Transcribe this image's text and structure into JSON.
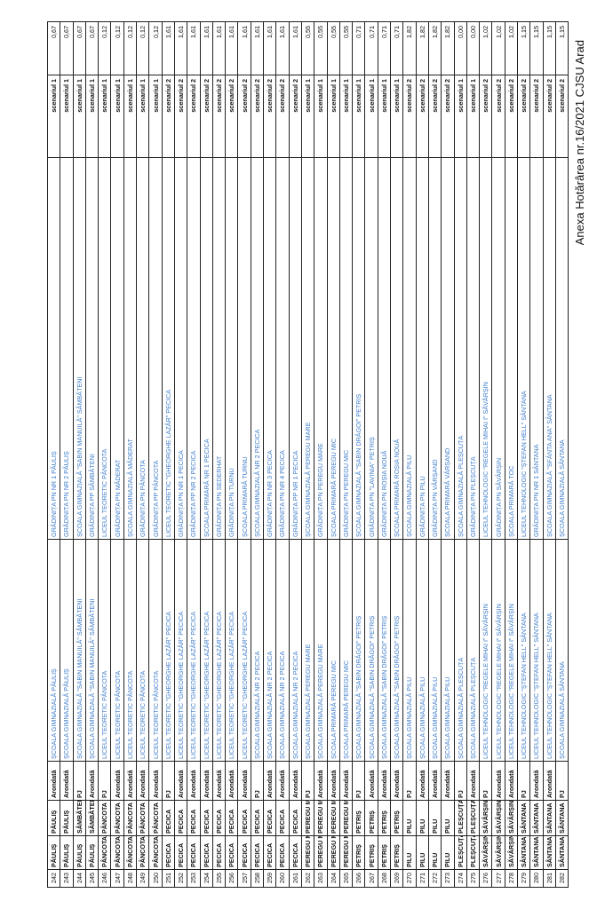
{
  "document": {
    "annex_title": "Anexa Hotărârea nr.16/2021 CJSU Arad"
  },
  "rows": [
    [
      "242",
      "PĂULIȘ",
      "PĂULIȘ",
      "Arondată",
      "ȘCOALA GIMNAZIALĂ PĂULIȘ",
      "GRĂDINIȚA PN NR 1 PĂULIȘ",
      "scenariul 1",
      "0,67"
    ],
    [
      "243",
      "PĂULIȘ",
      "PĂULIȘ",
      "Arondată",
      "ȘCOALA GIMNAZIALĂ PĂULIȘ",
      "GRĂDINIȚA PN NR 2 PĂULIȘ",
      "scenariul 1",
      "0,67"
    ],
    [
      "244",
      "PĂULIȘ",
      "SÂMBĂTENI",
      "PJ",
      "ȘCOALA GIMNAZIALĂ \"SABIN MANUILĂ\" SÂMBĂTENI",
      "ȘCOALA GIMNAZIALĂ \"SABIN MANUILĂ\" SÂMBĂTENI",
      "scenariul 1",
      "0,67"
    ],
    [
      "245",
      "PĂULIȘ",
      "SÂMBĂTENI",
      "Arondată",
      "ȘCOALA GIMNAZIALĂ \"SABIN MANUILĂ\" SÂMBĂTENI",
      "GRĂDINIȚA PP SÂMBĂTENI",
      "scenariul 1",
      "0,67"
    ],
    [
      "246",
      "PÂNCOTA",
      "PÂNCOTA",
      "PJ",
      "LICEUL TEORETIC PÂNCOTA",
      "LICEUL TEORETIC PÂNCOTA",
      "scenariul 1",
      "0,12"
    ],
    [
      "247",
      "PÂNCOTA",
      "PÂNCOTA",
      "Arondată",
      "LICEUL TEORETIC PÂNCOTA",
      "GRĂDINIȚA PN MĂDERAT",
      "scenariul 1",
      "0,12"
    ],
    [
      "248",
      "PÂNCOTA",
      "PÂNCOTA",
      "Arondată",
      "LICEUL TEORETIC PÂNCOTA",
      "ȘCOALA GIMNAZIALĂ MĂDERAT",
      "scenariul 1",
      "0,12"
    ],
    [
      "249",
      "PÂNCOTA",
      "PÂNCOTA",
      "Arondată",
      "LICEUL TEORETIC PÂNCOTA",
      "GRĂDINIȚA PN PÂNCOTA",
      "scenariul 1",
      "0,12"
    ],
    [
      "250",
      "PÂNCOTA",
      "PÂNCOTA",
      "Arondată",
      "LICEUL TEORETIC PÂNCOTA",
      "GRĂDINIȚA PP PÂNCOTA",
      "scenariul 1",
      "0,12"
    ],
    [
      "251",
      "PECICA",
      "PECICA",
      "PJ",
      "LICEUL TEORETIC \"GHEORGHE LAZĂR\" PECICA",
      "LICEUL TEORETIC \"GHEORGHE LAZĂR\" PECICA",
      "scenariul 2",
      "1,61"
    ],
    [
      "252",
      "PECICA",
      "PECICA",
      "Arondată",
      "LICEUL TEORETIC \"GHEORGHE LAZĂR\" PECICA",
      "GRĂDINIȚA PN NR 1 PECICA",
      "scenariul 2",
      "1,61"
    ],
    [
      "253",
      "PECICA",
      "PECICA",
      "Arondată",
      "LICEUL TEORETIC \"GHEORGHE LAZĂR\" PECICA",
      "GRĂDINIȚA PP NR 2 PECICA",
      "scenariul 2",
      "1,61"
    ],
    [
      "254",
      "PECICA",
      "PECICA",
      "Arondată",
      "LICEUL TEORETIC \"GHEORGHE LAZĂR\" PECICA",
      "ȘCOALA PRIMARĂ NR 1 PECICA",
      "scenariul 2",
      "1,61"
    ],
    [
      "255",
      "PECICA",
      "PECICA",
      "Arondată",
      "LICEUL TEORETIC \"GHEORGHE LAZĂR\" PECICA",
      "GRĂDINIȚA PN SEDERHAT",
      "scenariul 2",
      "1,61"
    ],
    [
      "256",
      "PECICA",
      "PECICA",
      "Arondată",
      "LICEUL TEORETIC \"GHEORGHE LAZĂR\" PECICA",
      "GRĂDINIȚA PN TURNU",
      "scenariul 2",
      "1,61"
    ],
    [
      "257",
      "PECICA",
      "PECICA",
      "Arondată",
      "LICEUL TEORETIC \"GHEORGHE LAZĂR\" PECICA",
      "ȘCOALA PRIMARĂ TURNU",
      "scenariul 2",
      "1,61"
    ],
    [
      "258",
      "PECICA",
      "PECICA",
      "PJ",
      "ȘCOALA GIMNAZIALĂ NR 2 PECICA",
      "ȘCOALA GIMNAZIALĂ NR 2 PECICA",
      "scenariul 2",
      "1,61"
    ],
    [
      "259",
      "PECICA",
      "PECICA",
      "Arondată",
      "ȘCOALA GIMNAZIALĂ NR 2 PECICA",
      "GRĂDINIȚA PN NR 3 PECICA",
      "scenariul 2",
      "1,61"
    ],
    [
      "260",
      "PECICA",
      "PECICA",
      "Arondată",
      "ȘCOALA GIMNAZIALĂ NR 2 PECICA",
      "GRĂDINIȚA PN NR 4 PECICA",
      "scenariul 2",
      "1,61"
    ],
    [
      "261",
      "PECICA",
      "PECICA",
      "Arondată",
      "ȘCOALA GIMNAZIALĂ NR 2 PECICA",
      "GRĂDINIȚA PP NR 1 PECICA",
      "scenariul 2",
      "1,61"
    ],
    [
      "262",
      "PEREGU MARE",
      "PEREGU MARE",
      "PJ",
      "ȘCOALA GIMNAZIALĂ PEREGU MARE",
      "ȘCOALA GIMNAZIALĂ PEREGU MARE",
      "scenariul 1",
      "0,55"
    ],
    [
      "263",
      "PEREGU MARE",
      "PEREGU MARE",
      "Arondată",
      "ȘCOALA GIMNAZIALĂ PEREGU MARE",
      "GRĂDINIȚA PN PEREGU MARE",
      "scenariul 1",
      "0,55"
    ],
    [
      "264",
      "PEREGU MARE",
      "PEREGU MIC",
      "Arondată",
      "ȘCOALA PRIMARĂ PEREGU MIC",
      "ȘCOALA PRIMARĂ PEREGU MIC",
      "scenariul 1",
      "0,55"
    ],
    [
      "265",
      "PEREGU MARE",
      "PEREGU MIC",
      "Arondată",
      "ȘCOALA PRIMARĂ PEREGU MIC",
      "GRĂDINIȚA PN PEREGU MIC",
      "scenariul 1",
      "0,55"
    ],
    [
      "266",
      "PETRIȘ",
      "PETRIȘ",
      "PJ",
      "ȘCOALA GIMNAZIALĂ \"SABIN DRĂGOI\" PETRIȘ",
      "ȘCOALA GIMNAZIALĂ \"SABIN DRĂGOI\" PETRIȘ",
      "scenariul 1",
      "0,71"
    ],
    [
      "267",
      "PETRIȘ",
      "PETRIȘ",
      "Arondată",
      "ȘCOALA GIMNAZIALĂ \"SABIN DRĂGOI\" PETRIȘ",
      "GRĂDINIȚA PN \"LAVINIA\" PETRIȘ",
      "scenariul 1",
      "0,71"
    ],
    [
      "268",
      "PETRIȘ",
      "PETRIȘ",
      "Arondată",
      "ȘCOALA GIMNAZIALĂ \"SABIN DRĂGOI\" PETRIȘ",
      "GRĂDINIȚA PN ROȘIA NOUĂ",
      "scenariul 1",
      "0,71"
    ],
    [
      "269",
      "PETRIȘ",
      "PETRIȘ",
      "Arondată",
      "ȘCOALA GIMNAZIALĂ \"SABIN DRĂGOI\" PETRIȘ",
      "ȘCOALA PRIMARĂ ROȘIA NOUĂ",
      "scenariul 1",
      "0,71"
    ],
    [
      "270",
      "PILU",
      "PILU",
      "PJ",
      "ȘCOALA GIMNAZIALĂ PILU",
      "ȘCOALA GIMNAZIALĂ PILU",
      "scenariul 2",
      "1,82"
    ],
    [
      "271",
      "PILU",
      "PILU",
      "Arondată",
      "ȘCOALA GIMNAZIALĂ PILU",
      "GRĂDINIȚA PN PILU",
      "scenariul 2",
      "1,82"
    ],
    [
      "272",
      "PILU",
      "PILU",
      "Arondată",
      "ȘCOALA GIMNAZIALĂ PILU",
      "GRĂDINIȚA PN VĂRȘAND",
      "scenariul 2",
      "1,82"
    ],
    [
      "273",
      "PILU",
      "PILU",
      "Arondată",
      "ȘCOALA GIMNAZIALĂ PILU",
      "ȘCOALA PRIMARĂ VĂRȘAND",
      "scenariul 2",
      "1,82"
    ],
    [
      "274",
      "PLEȘCUȚA",
      "PLEȘCUȚA",
      "PJ",
      "ȘCOALA GIMNAZIALĂ PLEȘCUȚA",
      "ȘCOALA GIMNAZIALĂ PLEȘCUȚA",
      "scenariul 1",
      "0,00"
    ],
    [
      "275",
      "PLEȘCUȚA",
      "PLEȘCUȚA",
      "Arondată",
      "ȘCOALA GIMNAZIALĂ PLEȘCUȚA",
      "GRĂDINIȚA PN PLEȘCUȚA",
      "scenariul 1",
      "0,00"
    ],
    [
      "276",
      "SĂVÂRȘIN",
      "SĂVÂRȘIN",
      "PJ",
      "LICEUL TEHNOLOGIC \"REGELE MIHAI I\" SĂVÂRȘIN",
      "LICEUL TEHNOLOGIC \"REGELE MIHAI I\" SĂVÂRȘIN",
      "scenariul 2",
      "1,02"
    ],
    [
      "277",
      "SĂVÂRȘIN",
      "SĂVÂRȘIN",
      "Arondată",
      "LICEUL TEHNOLOGIC \"REGELE MIHAI I\" SĂVÂRȘIN",
      "GRĂDINIȚA PN SĂVÂRȘIN",
      "scenariul 2",
      "1,02"
    ],
    [
      "278",
      "SĂVÂRȘIN",
      "SĂVÂRȘIN",
      "Arondată",
      "LICEUL TEHNOLOGIC \"REGELE MIHAI I\" SĂVÂRȘIN",
      "ȘCOALA PRIMARĂ TOC",
      "scenariul 2",
      "1,02"
    ],
    [
      "279",
      "SÂNTANA",
      "SÂNTANA",
      "PJ",
      "LICEUL TEHNOLOGIC \"ȘTEFAN HELL\" SÂNTANA",
      "LICEUL TEHNOLOGIC \"ȘTEFAN HELL\" SÂNTANA",
      "scenariul 2",
      "1,15"
    ],
    [
      "280",
      "SÂNTANA",
      "SÂNTANA",
      "Arondată",
      "LICEUL TEHNOLOGIC \"ȘTEFAN HELL\" SÂNTANA",
      "GRĂDINIȚA PN NR 1 SÂNTANA",
      "scenariul 2",
      "1,15"
    ],
    [
      "281",
      "SÂNTANA",
      "SÂNTANA",
      "Arondată",
      "LICEUL TEHNOLOGIC \"ȘTEFAN HELL\" SÂNTANA",
      "ȘCOALA GIMNAZIALĂ \"SFÂNTA ANA\" SÂNTANA",
      "scenariul 2",
      "1,15"
    ],
    [
      "282",
      "SÂNTANA",
      "SÂNTANA",
      "PJ",
      "ȘCOALA GIMNAZIALĂ SÂNTANA",
      "ȘCOALA GIMNAZIALĂ SÂNTANA",
      "scenariul 2",
      "1,15"
    ]
  ]
}
